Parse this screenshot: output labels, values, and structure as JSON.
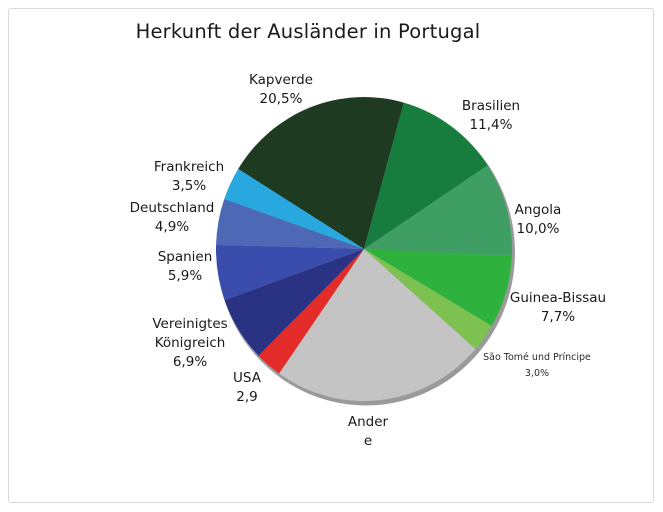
{
  "title": "Herkunft der Ausländer in Portugal",
  "chart_data": {
    "type": "pie",
    "title": "Herkunft der Ausländer in Portugal",
    "direction": "clockwise",
    "start_angle_deg_from_north": -58.2,
    "shadow_color": "#9a9a9a",
    "slices": [
      {
        "label": "Kapverde",
        "lines": [
          "Kapverde"
        ],
        "value_label": "20,5%",
        "pct": 20.5,
        "color": "#1e3b21"
      },
      {
        "label": "Brasilien",
        "lines": [
          "Brasilien"
        ],
        "value_label": "11,4%",
        "pct": 11.4,
        "color": "#177d3e"
      },
      {
        "label": "Angola",
        "lines": [
          "Angola"
        ],
        "value_label": "10,0%",
        "pct": 10.0,
        "color": "#3f9e63"
      },
      {
        "label": "Guinea-Bissau",
        "lines": [
          "Guinea-Bissau"
        ],
        "value_label": "7,7%",
        "pct": 7.7,
        "color": "#2eb23d"
      },
      {
        "label": "São Tomé und Príncipe",
        "lines": [
          "São Tomé und Príncipe"
        ],
        "value_label": "3,0%",
        "pct": 3.0,
        "color": "#7dc151"
      },
      {
        "label": "Andere",
        "lines": [
          "Ander",
          "e"
        ],
        "value_label": "",
        "pct": 23.3,
        "color": "#c4c4c4"
      },
      {
        "label": "USA",
        "lines": [
          "USA"
        ],
        "value_label": "2,9",
        "pct": 2.9,
        "color": "#e32b2a"
      },
      {
        "label": "Vereinigtes Königreich",
        "lines": [
          "Vereinigtes",
          "Königreich"
        ],
        "value_label": "6,9%",
        "pct": 6.9,
        "color": "#2a3284"
      },
      {
        "label": "Spanien",
        "lines": [
          "Spanien"
        ],
        "value_label": "5,9%",
        "pct": 5.9,
        "color": "#3a4dad"
      },
      {
        "label": "Deutschland",
        "lines": [
          "Deutschland"
        ],
        "value_label": "4,9%",
        "pct": 4.9,
        "color": "#4d68b5"
      },
      {
        "label": "Frankreich",
        "lines": [
          "Frankreich"
        ],
        "value_label": "3,5%",
        "pct": 3.5,
        "color": "#29a8e0"
      }
    ]
  }
}
